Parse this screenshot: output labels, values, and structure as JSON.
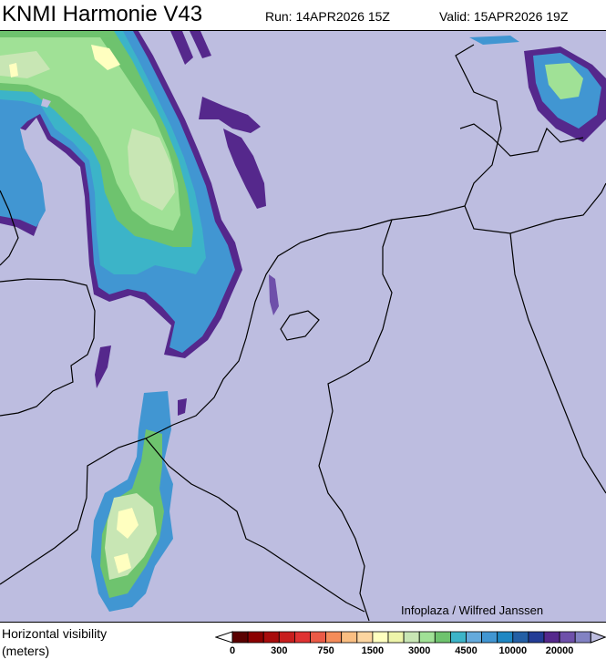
{
  "header": {
    "title": "KNMI Harmonie V43",
    "run": "Run: 14APR2026 15Z",
    "valid": "Valid: 15APR2026 19Z"
  },
  "map": {
    "background_color": "#bdbde0",
    "credit": "Infoplaza / Wilfred Janssen"
  },
  "legend": {
    "title_line1": "Horizontal visibility",
    "title_line2": "(meters)",
    "colors": [
      "#5a0000",
      "#8b0000",
      "#a80c0c",
      "#c81e1e",
      "#e03232",
      "#eb5a46",
      "#f58c5a",
      "#fabe82",
      "#fcd5a0",
      "#ffffc0",
      "#eef5aa",
      "#c8e6b4",
      "#a0e196",
      "#6ec36e",
      "#3cb4c8",
      "#64aadc",
      "#4196d2",
      "#1e87c3",
      "#235fa5",
      "#233c96",
      "#55288c",
      "#6e50aa",
      "#8282c3"
    ],
    "under_color": "#ffffff",
    "over_color": "#bdbde0",
    "tick_labels": [
      "0",
      "300",
      "750",
      "1500",
      "3000",
      "4500",
      "10000",
      "20000"
    ]
  }
}
